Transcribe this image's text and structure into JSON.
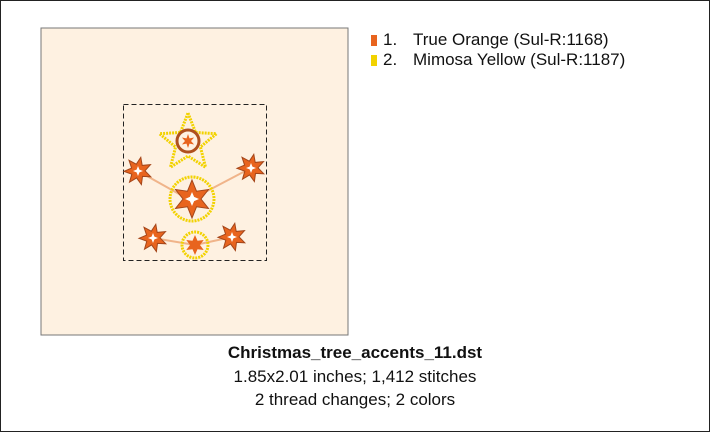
{
  "legend": [
    {
      "number": "1.",
      "name": "True Orange (Sul-R:1168)",
      "color": "#e8641e"
    },
    {
      "number": "2.",
      "name": "Mimosa Yellow (Sul-R:1187)",
      "color": "#f2d200"
    }
  ],
  "file_name": "Christmas_tree_accents_11.dst",
  "details": [
    "1.85x2.01 inches; 1,412 stitches",
    "2 thread changes; 2 colors"
  ]
}
